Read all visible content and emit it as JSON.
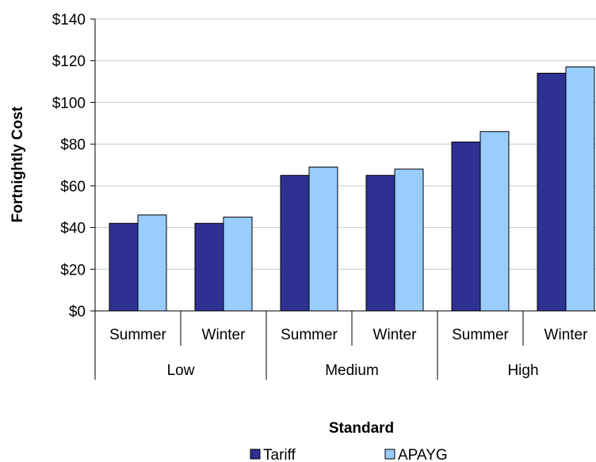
{
  "chart_data": {
    "type": "bar",
    "title": "",
    "xlabel": "Standard",
    "ylabel": "Fortnightly Cost",
    "ylim": [
      0,
      140
    ],
    "y_ticks": [
      "$0",
      "$20",
      "$40",
      "$60",
      "$80",
      "$100",
      "$120",
      "$140"
    ],
    "groups": [
      {
        "label": "Low",
        "categories": [
          "Summer",
          "Winter"
        ]
      },
      {
        "label": "Medium",
        "categories": [
          "Summer",
          "Winter"
        ]
      },
      {
        "label": "High",
        "categories": [
          "Summer",
          "Winter"
        ]
      }
    ],
    "categories": [
      "Summer",
      "Winter",
      "Summer",
      "Winter",
      "Summer",
      "Winter"
    ],
    "series": [
      {
        "name": "Tariff",
        "color": "#2e3192",
        "values": [
          42,
          42,
          65,
          65,
          81,
          114
        ]
      },
      {
        "name": "APAYG",
        "color": "#99ccff",
        "values": [
          46,
          45,
          69,
          68,
          86,
          117
        ]
      }
    ],
    "grid": true,
    "legend": "bottom"
  }
}
